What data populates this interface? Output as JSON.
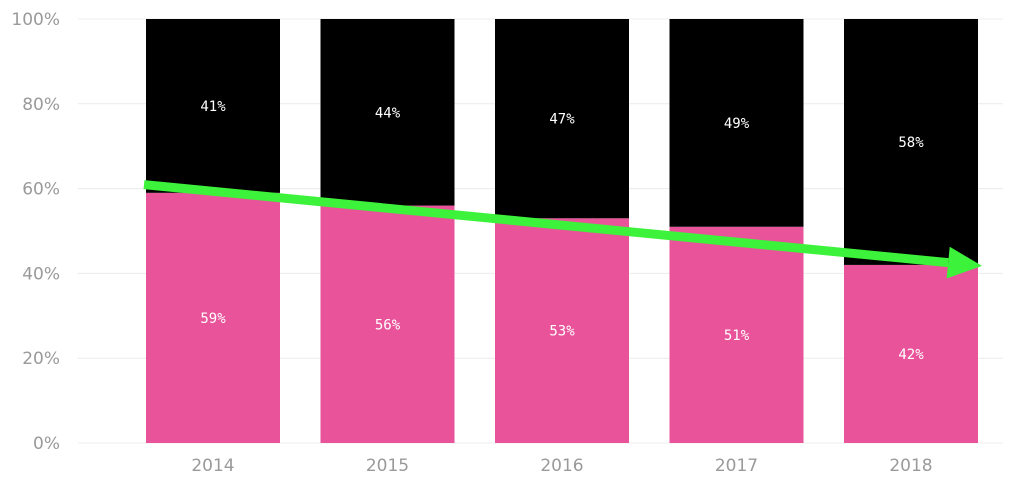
{
  "chart_data": {
    "type": "bar",
    "stacked": true,
    "categories": [
      "2014",
      "2015",
      "2016",
      "2017",
      "2018"
    ],
    "series": [
      {
        "values": [
          59,
          56,
          53,
          51,
          42
        ],
        "labels": [
          "59%",
          "56%",
          "53%",
          "51%",
          "42%"
        ],
        "color": "#e8539a"
      },
      {
        "values": [
          41,
          44,
          47,
          49,
          58
        ],
        "labels": [
          "41%",
          "44%",
          "47%",
          "49%",
          "58%"
        ],
        "color": "#000000"
      }
    ],
    "y_ticks": [
      "0%",
      "20%",
      "40%",
      "60%",
      "80%",
      "100%"
    ],
    "ylim": [
      0,
      100
    ],
    "grid": true,
    "annotation": {
      "type": "arrow",
      "from": [
        "2014",
        60
      ],
      "to": [
        "2018",
        42
      ],
      "color": "#3df23a"
    }
  }
}
